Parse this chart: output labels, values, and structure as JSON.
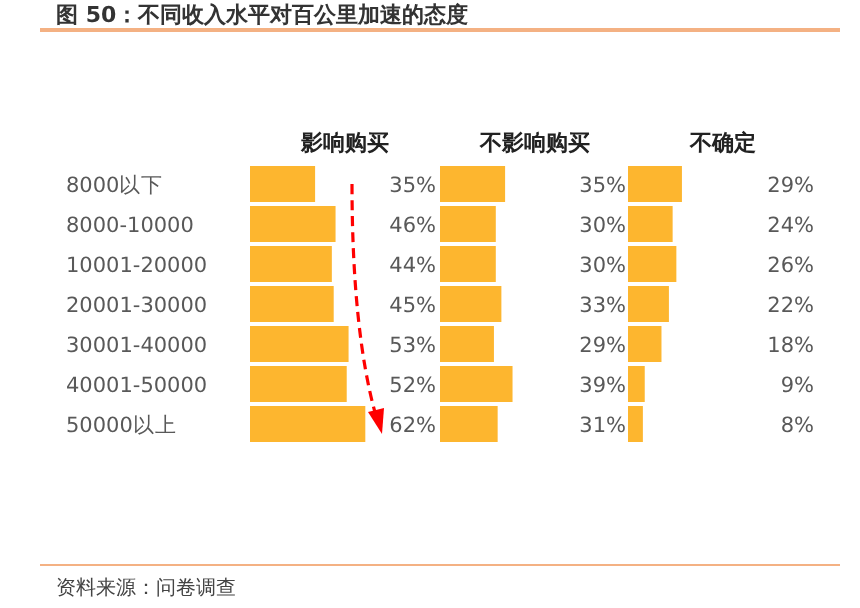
{
  "chart_data": [
    {
      "type": "bar",
      "title": "影响购买",
      "orientation": "horizontal",
      "annotations": [
        "图 50：不同收入水平对百公里加速的态度"
      ],
      "categories": [
        "8000以下",
        "8000-10000",
        "10001-20000",
        "20001-30000",
        "30001-40000",
        "40001-50000",
        "50000以上"
      ],
      "values": [
        35,
        46,
        44,
        45,
        53,
        52,
        62
      ],
      "value_labels": [
        "35%",
        "46%",
        "44%",
        "45%",
        "53%",
        "52%",
        "62%"
      ],
      "color": "#fdb62f",
      "tick_labels": "y"
    },
    {
      "type": "bar",
      "title": "不影响购买",
      "orientation": "horizontal",
      "values": [
        35,
        30,
        30,
        33,
        29,
        39,
        31
      ],
      "value_labels": [
        "35%",
        "30%",
        "30%",
        "33%",
        "29%",
        "39%",
        "31%"
      ],
      "color": "#fdb62f"
    },
    {
      "type": "bar",
      "title": "不确定",
      "orientation": "horizontal",
      "annotations": [
        "资料来源：问卷调查"
      ],
      "values": [
        29,
        24,
        26,
        22,
        18,
        9,
        8
      ],
      "value_labels": [
        "29%",
        "24%",
        "26%",
        "22%",
        "18%",
        "9%",
        "8%"
      ],
      "color": "#fdb62f"
    }
  ]
}
